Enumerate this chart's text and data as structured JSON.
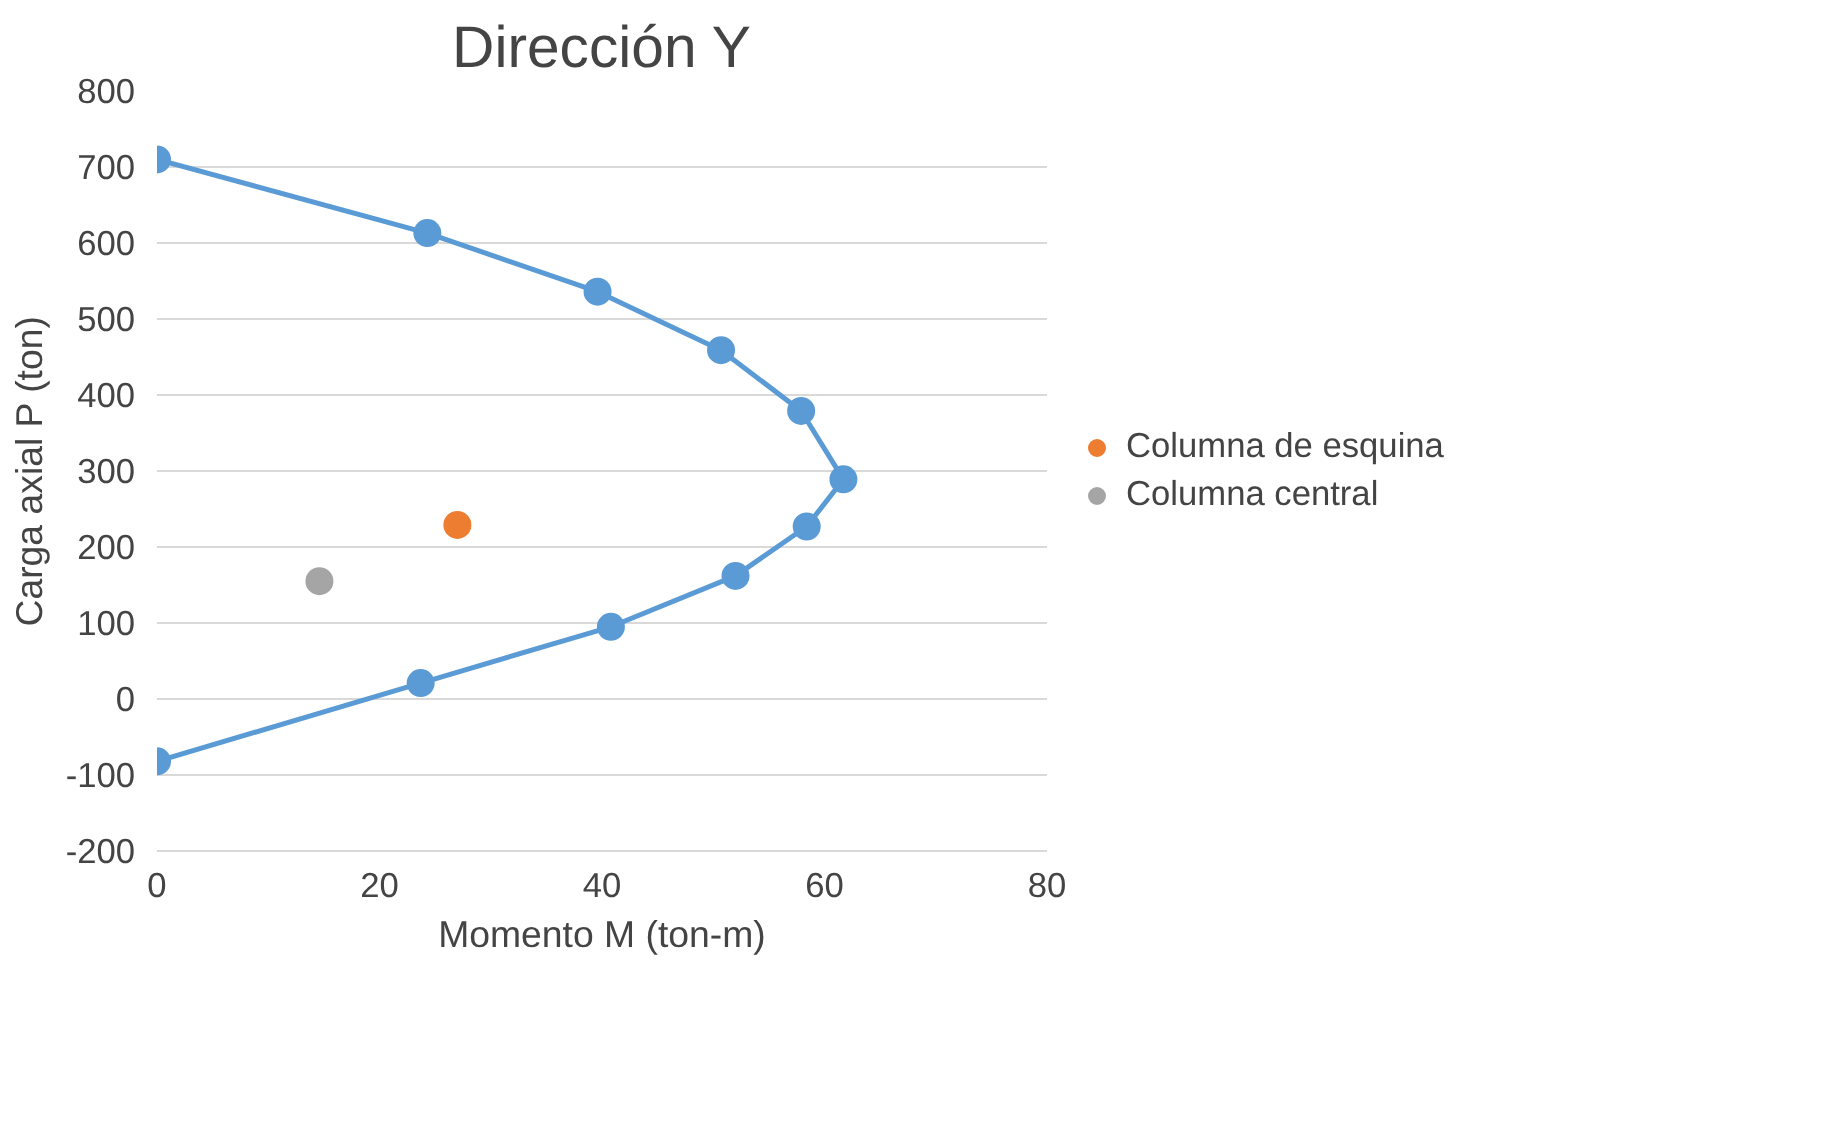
{
  "chart_data": {
    "type": "scatter",
    "title": "Dirección Y",
    "xlabel": "Momento M (ton-m)",
    "ylabel": "Carga axial P (ton)",
    "xlim": [
      0,
      80
    ],
    "xticks": [
      0,
      20,
      40,
      60,
      80
    ],
    "ylim": [
      -200,
      800
    ],
    "yticks": [
      -200,
      -100,
      0,
      100,
      200,
      300,
      400,
      500,
      600,
      700,
      800
    ],
    "grid": true,
    "legend": "right",
    "marker": "circle",
    "series": [
      {
        "type": "line",
        "color": "#5b9bd5",
        "x": [
          0,
          24.3,
          39.6,
          50.7,
          57.9,
          61.7,
          58.4,
          52,
          40.8,
          23.7,
          0
        ],
        "values": [
          710,
          613,
          536,
          459,
          379,
          289,
          227,
          162,
          95,
          21,
          -82
        ]
      },
      {
        "name": "Columna de esquina",
        "color": "#ed7d31",
        "x": [
          27
        ],
        "values": [
          229
        ]
      },
      {
        "name": "Columna central",
        "color": "#a5a5a5",
        "x": [
          14.6
        ],
        "values": [
          155
        ]
      }
    ]
  }
}
